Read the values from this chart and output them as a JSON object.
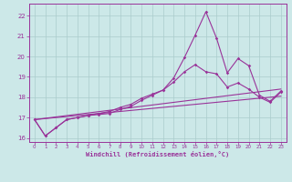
{
  "background_color": "#cce8e8",
  "grid_color": "#aacccc",
  "line_color": "#993399",
  "xlim": [
    -0.5,
    23.5
  ],
  "ylim": [
    15.8,
    22.6
  ],
  "xticks": [
    0,
    1,
    2,
    3,
    4,
    5,
    6,
    7,
    8,
    9,
    10,
    11,
    12,
    13,
    14,
    15,
    16,
    17,
    18,
    19,
    20,
    21,
    22,
    23
  ],
  "yticks": [
    16,
    17,
    18,
    19,
    20,
    21,
    22
  ],
  "xlabel": "Windchill (Refroidissement éolien,°C)",
  "line1_x": [
    0,
    1,
    2,
    3,
    4,
    5,
    6,
    7,
    8,
    9,
    10,
    11,
    12,
    13,
    14,
    15,
    16,
    17,
    18,
    19,
    20,
    21,
    22,
    23
  ],
  "line1_y": [
    16.9,
    16.1,
    16.5,
    16.9,
    17.0,
    17.1,
    17.15,
    17.2,
    17.4,
    17.55,
    17.85,
    18.1,
    18.35,
    18.95,
    19.95,
    21.05,
    22.2,
    20.9,
    19.2,
    19.9,
    19.55,
    18.1,
    17.8,
    18.3
  ],
  "line2_x": [
    0,
    1,
    2,
    3,
    4,
    5,
    6,
    7,
    8,
    9,
    10,
    11,
    12,
    13,
    14,
    15,
    16,
    17,
    18,
    19,
    20,
    21,
    22,
    23
  ],
  "line2_y": [
    16.9,
    16.1,
    16.5,
    16.9,
    17.0,
    17.1,
    17.2,
    17.3,
    17.5,
    17.65,
    17.95,
    18.15,
    18.35,
    18.75,
    19.25,
    19.6,
    19.25,
    19.15,
    18.5,
    18.7,
    18.4,
    18.0,
    17.75,
    18.25
  ],
  "line3_x": [
    0,
    23
  ],
  "line3_y": [
    16.9,
    18.4
  ],
  "line4_x": [
    0,
    23
  ],
  "line4_y": [
    16.9,
    18.05
  ],
  "figsize": [
    3.2,
    2.0
  ],
  "dpi": 100
}
